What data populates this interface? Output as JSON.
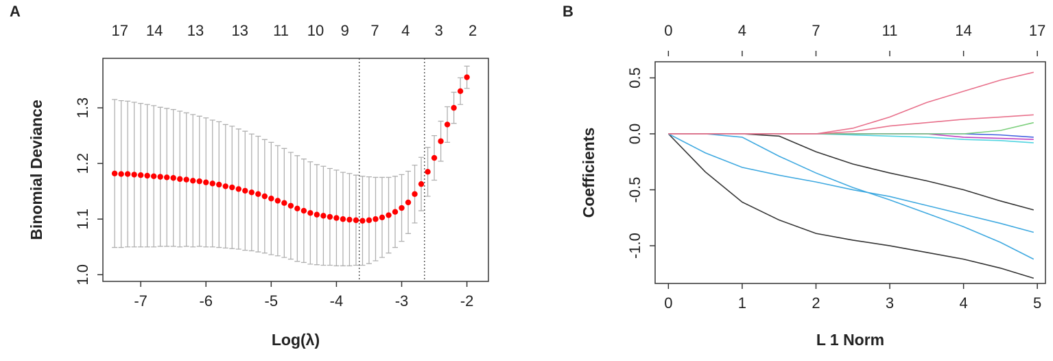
{
  "chart_data": [
    {
      "type": "errorbar",
      "panel_label": "A",
      "x_label": "Log(λ)",
      "y_label": "Binomial Deviance",
      "x": [
        -7.4,
        -7.3,
        -7.2,
        -7.1,
        -7.0,
        -6.9,
        -6.8,
        -6.7,
        -6.6,
        -6.5,
        -6.4,
        -6.3,
        -6.2,
        -6.1,
        -6.0,
        -5.9,
        -5.8,
        -5.7,
        -5.6,
        -5.5,
        -5.4,
        -5.3,
        -5.2,
        -5.1,
        -5.0,
        -4.9,
        -4.8,
        -4.7,
        -4.6,
        -4.5,
        -4.4,
        -4.3,
        -4.2,
        -4.1,
        -4.0,
        -3.9,
        -3.8,
        -3.7,
        -3.6,
        -3.5,
        -3.4,
        -3.3,
        -3.2,
        -3.1,
        -3.0,
        -2.9,
        -2.8,
        -2.7,
        -2.6,
        -2.5,
        -2.4,
        -2.3,
        -2.2,
        -2.1,
        -2.0
      ],
      "values": [
        1.182,
        1.181,
        1.181,
        1.18,
        1.179,
        1.178,
        1.177,
        1.176,
        1.175,
        1.174,
        1.172,
        1.171,
        1.169,
        1.168,
        1.166,
        1.164,
        1.162,
        1.159,
        1.157,
        1.154,
        1.151,
        1.148,
        1.145,
        1.141,
        1.137,
        1.133,
        1.129,
        1.124,
        1.119,
        1.115,
        1.111,
        1.108,
        1.106,
        1.104,
        1.102,
        1.1,
        1.099,
        1.098,
        1.097,
        1.098,
        1.1,
        1.103,
        1.107,
        1.113,
        1.12,
        1.13,
        1.145,
        1.163,
        1.185,
        1.21,
        1.24,
        1.27,
        1.3,
        1.33,
        1.355
      ],
      "errors": [
        0.133,
        0.132,
        0.131,
        0.13,
        0.129,
        0.128,
        0.127,
        0.125,
        0.124,
        0.123,
        0.122,
        0.12,
        0.119,
        0.117,
        0.116,
        0.114,
        0.113,
        0.111,
        0.11,
        0.108,
        0.107,
        0.105,
        0.104,
        0.102,
        0.101,
        0.099,
        0.098,
        0.096,
        0.095,
        0.093,
        0.092,
        0.09,
        0.089,
        0.087,
        0.086,
        0.084,
        0.083,
        0.081,
        0.08,
        0.078,
        0.075,
        0.072,
        0.068,
        0.064,
        0.06,
        0.056,
        0.052,
        0.048,
        0.044,
        0.04,
        0.036,
        0.032,
        0.028,
        0.024,
        0.02
      ],
      "color": "#ff0000",
      "error_color": "#b0b0b0",
      "vlines": [
        -3.65,
        -2.65
      ],
      "xlim": [
        -7.58,
        -1.67
      ],
      "ylim": [
        0.988,
        1.389
      ],
      "xticks": [
        -7,
        -6,
        -5,
        -4,
        -3,
        -2
      ],
      "yticks": [
        {
          "value": 1,
          "label": "1.0"
        },
        1.1,
        1.2,
        1.3
      ],
      "top_ticks": [
        {
          "value": -7.32,
          "label": "17"
        },
        {
          "value": -6.79,
          "label": "14"
        },
        {
          "value": -6.16,
          "label": "13"
        },
        {
          "value": -5.48,
          "label": "13"
        },
        {
          "value": -4.85,
          "label": "11"
        },
        {
          "value": -4.32,
          "label": "10"
        },
        {
          "value": -3.87,
          "label": "9"
        },
        {
          "value": -3.41,
          "label": "7"
        },
        {
          "value": -2.94,
          "label": "4"
        },
        {
          "value": -2.43,
          "label": "3"
        },
        {
          "value": -1.91,
          "label": "2"
        }
      ],
      "top_tick_marks": false
    },
    {
      "type": "line",
      "panel_label": "B",
      "x_label": "L 1 Norm",
      "y_label": "Coefficients",
      "x": [
        0,
        0.5,
        1,
        1.5,
        2,
        2.5,
        3,
        3.5,
        4,
        4.5,
        4.95
      ],
      "series": [
        {
          "color": "#333333",
          "values": [
            0,
            -0.34,
            -0.61,
            -0.77,
            -0.89,
            -0.95,
            -1.0,
            -1.06,
            -1.12,
            -1.2,
            -1.29
          ]
        },
        {
          "color": "#3fa9e0",
          "values": [
            0,
            -0.17,
            -0.3,
            -0.37,
            -0.43,
            -0.5,
            -0.56,
            -0.64,
            -0.72,
            -0.8,
            -0.88
          ]
        },
        {
          "color": "#3fa9e0",
          "values": [
            0,
            0,
            -0.03,
            -0.2,
            -0.35,
            -0.48,
            -0.59,
            -0.71,
            -0.83,
            -0.97,
            -1.12
          ]
        },
        {
          "color": "#333333",
          "values": [
            0,
            0,
            0,
            -0.02,
            -0.16,
            -0.27,
            -0.35,
            -0.42,
            -0.5,
            -0.6,
            -0.68
          ]
        },
        {
          "color": "#4fd4e0",
          "values": [
            0,
            0,
            0,
            0,
            0,
            -0.01,
            -0.02,
            -0.03,
            -0.05,
            -0.06,
            -0.08
          ]
        },
        {
          "color": "#4060e0",
          "values": [
            0,
            0,
            0,
            0,
            0,
            0,
            0,
            0,
            0,
            -0.01,
            -0.03
          ]
        },
        {
          "color": "#c040c0",
          "values": [
            0,
            0,
            0,
            0,
            0,
            0,
            0,
            0,
            -0.03,
            -0.04,
            -0.05
          ]
        },
        {
          "color": "#7ccf7c",
          "values": [
            0,
            0,
            0,
            0,
            0,
            0,
            0,
            0,
            0,
            0.03,
            0.1
          ]
        },
        {
          "color": "#e8708b",
          "values": [
            0,
            0,
            0,
            0,
            0,
            0.02,
            0.07,
            0.1,
            0.13,
            0.15,
            0.17
          ]
        },
        {
          "color": "#e8708b",
          "values": [
            0,
            0,
            0,
            0,
            0,
            0.05,
            0.15,
            0.28,
            0.38,
            0.48,
            0.55
          ]
        }
      ],
      "xlim": [
        -0.18,
        5.11
      ],
      "ylim": [
        -1.337,
        0.644
      ],
      "xticks": [
        0,
        1,
        2,
        3,
        4,
        5
      ],
      "yticks": [
        0.5,
        {
          "value": 0,
          "label": "0.0"
        },
        -0.5,
        {
          "value": -1,
          "label": "-1.0"
        }
      ],
      "top_ticks": [
        {
          "value": 0,
          "label": "0"
        },
        {
          "value": 1,
          "label": "4"
        },
        {
          "value": 2,
          "label": "7"
        },
        {
          "value": 3,
          "label": "11"
        },
        {
          "value": 4,
          "label": "14"
        },
        {
          "value": 5,
          "label": "17"
        }
      ],
      "top_tick_marks": true
    }
  ]
}
